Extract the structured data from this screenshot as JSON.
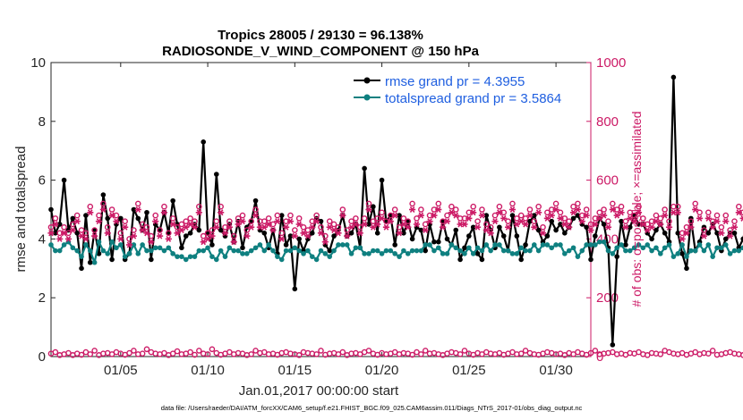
{
  "chart_data": {
    "type": "line",
    "title_line1": "Tropics 28005 / 29130 = 96.138%",
    "title_line2": "RADIOSONDE_V_WIND_COMPONENT @ 150 hPa",
    "ylabel_left": "rmse and totalspread",
    "ylabel_right": "# of obs: o=possible; ×=assimilated",
    "xlabel": "Jan.01,2017 00:00:00 start",
    "footer": "data file: /Users/raeder/DAI/ATM_forcXX/CAM6_setup/f.e21.FHIST_BGC.f09_025.CAM6assim.011/Diags_NTrS_2017-01/obs_diag_output.nc",
    "xlim": [
      1.0,
      32.0
    ],
    "ylim_left": [
      0,
      10
    ],
    "ylim_right": [
      0,
      1000
    ],
    "xticks": [
      5,
      10,
      15,
      20,
      25,
      30
    ],
    "xtick_labels": [
      "01/05",
      "01/10",
      "01/15",
      "01/20",
      "01/25",
      "01/30"
    ],
    "yticks_left": [
      0,
      2,
      4,
      6,
      8,
      10
    ],
    "ytick_labels_left": [
      "0",
      "2",
      "4",
      "6",
      "8",
      "10"
    ],
    "yticks_right": [
      0,
      200,
      400,
      600,
      800,
      1000
    ],
    "ytick_labels_right": [
      "0",
      "200",
      "400",
      "600",
      "800",
      "1000"
    ],
    "x_start": 1.0,
    "x_step": 0.25,
    "series": [
      {
        "name": "rmse grand pr = 4.3955",
        "color": "#000000",
        "marker": "circle",
        "axis": "left",
        "values": [
          5.0,
          4.2,
          4.5,
          6.0,
          4.3,
          4.7,
          4.2,
          3.0,
          4.8,
          3.2,
          4.3,
          3.5,
          5.5,
          4.7,
          3.3,
          4.5,
          4.7,
          3.3,
          3.5,
          5.0,
          4.7,
          4.3,
          4.9,
          3.3,
          4.5,
          4.3,
          4.9,
          4.2,
          5.3,
          4.5,
          3.7,
          4.1,
          4.2,
          4.5,
          4.3,
          7.3,
          4.2,
          3.8,
          6.2,
          4.3,
          4.1,
          4.5,
          3.9,
          4.6,
          3.7,
          4.4,
          4.6,
          5.3,
          4.3,
          4.2,
          3.7,
          4.3,
          3.5,
          4.8,
          3.8,
          4.1,
          2.3,
          4.0,
          3.6,
          4.0,
          4.2,
          4.7,
          4.6,
          3.8,
          3.6,
          4.1,
          4.3,
          4.8,
          4.1,
          4.2,
          4.5,
          3.7,
          6.4,
          4.5,
          5.1,
          4.2,
          6.0,
          4.6,
          4.8,
          3.8,
          4.8,
          4.2,
          4.6,
          4.0,
          4.4,
          4.3,
          3.6,
          4.5,
          3.9,
          3.9,
          4.6,
          4.0,
          3.8,
          4.3,
          3.3,
          3.7,
          4.1,
          4.4,
          3.5,
          3.3,
          4.8,
          4.3,
          3.7,
          4.4,
          4.1,
          3.6,
          4.8,
          4.1,
          3.3,
          3.8,
          4.6,
          4.8,
          4.3,
          3.9,
          4.1,
          4.6,
          4.3,
          4.5,
          4.2,
          4.4,
          4.7,
          4.8,
          4.5,
          4.4,
          3.3,
          4.1,
          4.7,
          4.5,
          3.7,
          0.4,
          3.4,
          4.6,
          3.8,
          4.4,
          4.8,
          4.5,
          4.5,
          4.2,
          4.0,
          4.3,
          4.5,
          4.2,
          3.9,
          9.5,
          4.2,
          3.5,
          3.0,
          4.7,
          3.6,
          3.9,
          4.4,
          4.2,
          4.5,
          4.2,
          3.6,
          4.0,
          4.2,
          4.2,
          3.7,
          4.0,
          4.7,
          4.3,
          4.1,
          4.4,
          4.5,
          4.1,
          3.8,
          3.7,
          4.0,
          4.7,
          3.9,
          4.2,
          3.3,
          4.6,
          3.8,
          3.6,
          4.5,
          4.4,
          7.4,
          4.6,
          4.2,
          4.6,
          4.5,
          3.9,
          4.4,
          4.3,
          4.5,
          4.6,
          4.4,
          4.3,
          4.4,
          5.7,
          4.3,
          4.6,
          4.0,
          4.0,
          3.9,
          4.5
        ]
      },
      {
        "name": "totalspread grand pr = 3.5864",
        "color": "#0f8080",
        "marker": "circle",
        "axis": "left",
        "values": [
          3.8,
          3.6,
          3.6,
          3.8,
          3.9,
          3.7,
          3.6,
          3.4,
          3.8,
          3.6,
          3.2,
          3.9,
          3.6,
          3.5,
          3.9,
          3.7,
          3.8,
          3.4,
          3.5,
          3.8,
          3.5,
          3.8,
          3.6,
          3.6,
          3.7,
          3.7,
          3.6,
          3.7,
          3.5,
          3.4,
          3.4,
          3.3,
          3.4,
          3.4,
          3.6,
          3.6,
          3.7,
          3.4,
          3.3,
          3.6,
          3.4,
          3.7,
          3.6,
          3.6,
          3.5,
          3.5,
          3.6,
          3.7,
          3.8,
          3.6,
          3.8,
          3.6,
          3.4,
          3.3,
          3.6,
          3.6,
          3.7,
          3.6,
          3.5,
          3.6,
          3.4,
          3.3,
          3.6,
          3.5,
          3.4,
          3.6,
          3.8,
          3.8,
          3.8,
          3.5,
          3.7,
          3.7,
          3.5,
          3.5,
          3.6,
          3.6,
          3.5,
          3.6,
          3.6,
          3.5,
          3.4,
          3.6,
          3.5,
          3.6,
          3.6,
          3.6,
          3.8,
          3.8,
          3.6,
          3.7,
          3.5,
          3.5,
          3.8,
          3.7,
          3.6,
          3.5,
          3.7,
          3.5,
          3.7,
          3.6,
          3.8,
          3.6,
          3.8,
          3.8,
          3.6,
          3.6,
          3.5,
          3.5,
          3.7,
          3.6,
          3.6,
          3.8,
          3.6,
          3.8,
          3.8,
          3.7,
          3.8,
          3.8,
          3.5,
          3.6,
          3.7,
          3.4,
          3.6,
          3.8,
          3.8,
          3.8,
          3.9,
          3.9,
          3.6,
          3.5,
          3.7,
          3.8,
          3.6,
          3.6,
          3.7,
          3.8,
          3.7,
          3.8,
          3.6,
          3.7,
          3.5,
          3.7,
          3.8,
          3.4,
          3.5,
          3.8,
          3.4,
          3.6,
          3.6,
          3.8,
          3.6,
          3.8,
          3.4,
          3.7,
          3.7,
          3.8,
          3.5,
          3.6,
          3.6,
          3.7,
          3.8,
          3.9,
          3.5,
          3.4,
          3.6,
          3.6,
          3.5,
          3.7,
          3.4,
          3.7,
          3.6,
          3.5,
          3.7,
          3.8,
          3.7,
          3.6,
          3.8,
          3.8,
          3.5,
          3.6,
          3.5,
          3.6,
          3.5,
          3.5,
          3.4,
          3.6,
          3.5,
          3.4,
          3.6,
          3.4,
          3.7,
          3.4,
          3.6,
          3.5,
          3.5,
          3.5,
          3.4,
          3.1,
          3.6,
          3.6,
          3.3,
          3.5,
          2.9,
          3.4,
          3.4
        ]
      },
      {
        "name": "# possible",
        "color": "#cc1a66",
        "marker": "open-circle",
        "axis": "right",
        "values": [
          440,
          470,
          420,
          440,
          420,
          450,
          480,
          430,
          420,
          510,
          430,
          480,
          520,
          440,
          500,
          480,
          420,
          460,
          400,
          430,
          520,
          450,
          440,
          410,
          480,
          430,
          510,
          420,
          470,
          440,
          450,
          460,
          470,
          460,
          510,
          410,
          420,
          430,
          460,
          510,
          440,
          460,
          410,
          470,
          480,
          430,
          460,
          500,
          460,
          460,
          470,
          450,
          480,
          420,
          460,
          480,
          430,
          470,
          440,
          430,
          460,
          480,
          440,
          410,
          460,
          450,
          440,
          500,
          430,
          460,
          470,
          440,
          470,
          520,
          460,
          470,
          490,
          460,
          480,
          500,
          440,
          470,
          460,
          520,
          470,
          500,
          450,
          480,
          500,
          520,
          460,
          480,
          510,
          500,
          470,
          470,
          490,
          510,
          460,
          500,
          450,
          440,
          480,
          510,
          490,
          460,
          520,
          470,
          480,
          470,
          500,
          460,
          510,
          440,
          490,
          500,
          520,
          490,
          470,
          460,
          510,
          520,
          480,
          500,
          450,
          470,
          490,
          500,
          460,
          520,
          500,
          510,
          460,
          490,
          480,
          510,
          470,
          450,
          460,
          480,
          470,
          500,
          460,
          510,
          510,
          420,
          440,
          460,
          520,
          490,
          430,
          490,
          460,
          480,
          440,
          480,
          430,
          460,
          510,
          490,
          470,
          450,
          440,
          490,
          500,
          480,
          460,
          480,
          510,
          430,
          520,
          470,
          500,
          490,
          460,
          440,
          480,
          450,
          470,
          430,
          460,
          470,
          500,
          470,
          460,
          440,
          420,
          460,
          450,
          490,
          500,
          470,
          440,
          460,
          500,
          460,
          410,
          420,
          450
        ]
      },
      {
        "name": "# assimilated",
        "color": "#cc1a66",
        "marker": "asterisk",
        "axis": "right",
        "values": [
          420,
          450,
          400,
          420,
          400,
          430,
          460,
          410,
          400,
          490,
          410,
          460,
          500,
          420,
          480,
          460,
          400,
          440,
          380,
          410,
          500,
          430,
          420,
          390,
          460,
          410,
          490,
          400,
          450,
          420,
          430,
          440,
          450,
          440,
          490,
          390,
          400,
          410,
          440,
          490,
          420,
          440,
          390,
          450,
          460,
          410,
          440,
          480,
          440,
          440,
          450,
          430,
          460,
          400,
          440,
          460,
          410,
          450,
          420,
          410,
          440,
          460,
          420,
          390,
          440,
          430,
          420,
          480,
          410,
          440,
          450,
          420,
          450,
          500,
          440,
          450,
          470,
          440,
          460,
          480,
          420,
          450,
          440,
          500,
          450,
          480,
          430,
          460,
          480,
          500,
          440,
          460,
          490,
          480,
          450,
          450,
          470,
          490,
          440,
          480,
          430,
          420,
          460,
          490,
          470,
          440,
          500,
          450,
          460,
          450,
          480,
          440,
          490,
          420,
          470,
          480,
          500,
          470,
          450,
          440,
          490,
          500,
          460,
          480,
          430,
          450,
          470,
          480,
          440,
          500,
          480,
          490,
          440,
          470,
          460,
          490,
          450,
          430,
          440,
          460,
          450,
          480,
          440,
          490,
          490,
          400,
          420,
          440,
          500,
          470,
          410,
          470,
          440,
          460,
          420,
          460,
          410,
          440,
          490,
          470,
          450,
          430,
          420,
          470,
          480,
          460,
          440,
          460,
          490,
          410,
          500,
          450,
          480,
          470,
          440,
          420,
          460,
          430,
          450,
          410,
          440,
          450,
          480,
          450,
          440,
          420,
          400,
          440,
          430,
          470,
          480,
          450,
          420,
          440,
          480,
          440,
          390,
          400,
          430
        ]
      },
      {
        "name": "# possible (low)",
        "color": "#cc1a66",
        "marker": "open-circle",
        "axis": "right",
        "values": [
          10,
          15,
          5,
          8,
          12,
          5,
          10,
          6,
          15,
          8,
          20,
          5,
          10,
          12,
          8,
          15,
          10,
          6,
          12,
          20,
          8,
          10,
          25,
          15,
          10,
          8,
          12,
          5,
          10,
          18,
          8,
          10,
          15,
          6,
          20,
          10,
          8,
          25,
          12,
          6,
          10,
          15,
          8,
          12,
          10,
          5,
          8,
          20,
          12,
          15,
          8,
          10,
          6,
          12,
          15,
          10,
          8,
          5,
          15,
          12,
          10,
          8,
          20,
          6,
          10,
          12,
          8,
          15,
          5,
          10,
          12,
          8,
          15,
          20,
          10,
          6,
          12,
          8,
          10,
          15,
          8,
          12,
          10,
          6,
          15,
          8,
          20,
          10,
          12,
          8,
          5,
          10,
          15,
          12,
          8,
          20,
          10,
          6,
          12,
          8,
          15,
          10,
          8,
          12,
          6,
          10,
          15,
          8,
          10,
          20,
          12,
          8,
          6,
          10,
          15,
          12,
          8,
          10,
          5,
          12,
          8,
          15,
          10,
          6,
          12,
          20,
          8,
          10,
          12,
          15,
          8,
          10,
          6,
          12,
          10,
          15,
          8,
          5,
          12,
          10,
          8,
          20,
          15,
          10,
          8,
          12,
          6,
          10,
          15,
          8,
          12,
          10,
          20,
          6,
          8,
          12,
          15,
          10,
          8,
          5,
          10,
          12,
          8,
          15,
          10,
          20,
          6,
          8,
          30,
          10,
          12,
          8,
          15,
          10,
          6,
          12,
          8,
          10,
          15,
          20,
          8,
          10,
          12,
          6,
          10,
          15,
          8,
          12,
          5,
          10,
          20,
          15,
          8,
          12,
          10,
          6,
          5,
          2,
          0
        ]
      }
    ]
  }
}
